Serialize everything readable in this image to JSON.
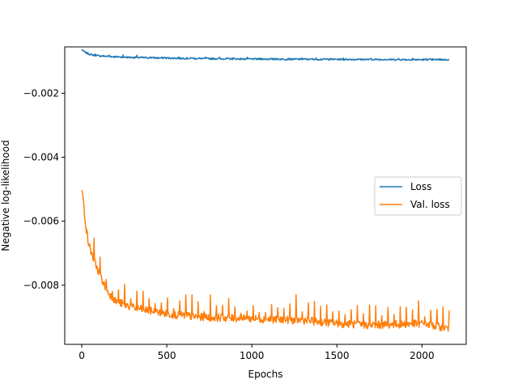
{
  "chart_data": {
    "type": "line",
    "title": "",
    "xlabel": "Epochs",
    "ylabel": "Negative log-likelihood",
    "xlim": [
      -100,
      2260
    ],
    "ylim": [
      -0.00985,
      -0.00055
    ],
    "xticks": [
      0,
      500,
      1000,
      1500,
      2000
    ],
    "xtick_labels": [
      "0",
      "500",
      "1000",
      "1500",
      "2000"
    ],
    "yticks": [
      -0.008,
      -0.006,
      -0.004,
      -0.002
    ],
    "ytick_labels": [
      "−0.008",
      "−0.006",
      "−0.004",
      "−0.002"
    ],
    "grid": false,
    "legend": "center-right",
    "series": [
      {
        "name": "Loss",
        "color": "#1f77b4",
        "anchors": [
          [
            0,
            -0.00064
          ],
          [
            20,
            -0.00072
          ],
          [
            50,
            -0.00079
          ],
          [
            100,
            -0.00083
          ],
          [
            200,
            -0.00086
          ],
          [
            300,
            -0.00088
          ],
          [
            500,
            -0.0009
          ],
          [
            800,
            -0.00092
          ],
          [
            1000,
            -0.00093
          ],
          [
            1500,
            -0.00094
          ],
          [
            2000,
            -0.00095
          ],
          [
            2160,
            -0.00095
          ]
        ],
        "noise": 2.5e-05,
        "spike_every": 80,
        "spike": 4e-05
      },
      {
        "name": "Val. loss",
        "color": "#ff7f0e",
        "anchors": [
          [
            0,
            -0.005
          ],
          [
            10,
            -0.0054
          ],
          [
            25,
            -0.0062
          ],
          [
            40,
            -0.0067
          ],
          [
            70,
            -0.0072
          ],
          [
            100,
            -0.0076
          ],
          [
            150,
            -0.0082
          ],
          [
            200,
            -0.0085
          ],
          [
            300,
            -0.0087
          ],
          [
            400,
            -0.0088
          ],
          [
            500,
            -0.0089
          ],
          [
            700,
            -0.009
          ],
          [
            1000,
            -0.00905
          ],
          [
            1300,
            -0.0091
          ],
          [
            1500,
            -0.0092
          ],
          [
            1700,
            -0.00925
          ],
          [
            2000,
            -0.0092
          ],
          [
            2160,
            -0.00935
          ]
        ],
        "noise": 0.00012,
        "spike_every": 37,
        "spike": 0.00045
      }
    ]
  }
}
